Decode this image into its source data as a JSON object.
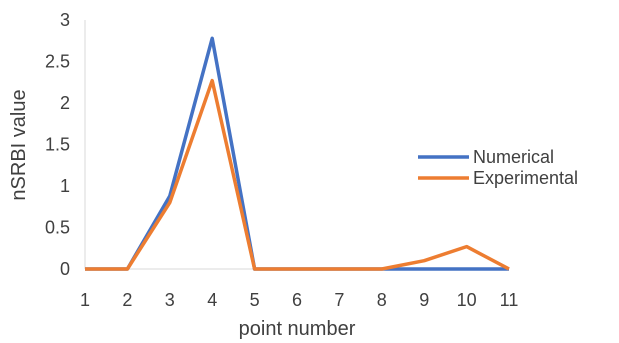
{
  "chart_data": {
    "type": "line",
    "xlabel": "point number",
    "ylabel": "nSRBI value",
    "ylim": [
      0,
      3
    ],
    "yticks": [
      "0",
      "0.5",
      "1",
      "1.5",
      "2",
      "2.5",
      "3"
    ],
    "categories": [
      "1",
      "2",
      "3",
      "4",
      "5",
      "6",
      "7",
      "8",
      "9",
      "10",
      "11"
    ],
    "grid": false,
    "legend_position": "right",
    "series": [
      {
        "name": "Numerical",
        "color": "#4472C4",
        "values": [
          0,
          0,
          0.88,
          2.78,
          0,
          0,
          0,
          0,
          0,
          0,
          0
        ]
      },
      {
        "name": "Experimental",
        "color": "#ED7D31",
        "values": [
          0,
          0,
          0.8,
          2.27,
          0,
          0,
          0,
          0,
          0.1,
          0.27,
          0
        ]
      }
    ]
  }
}
